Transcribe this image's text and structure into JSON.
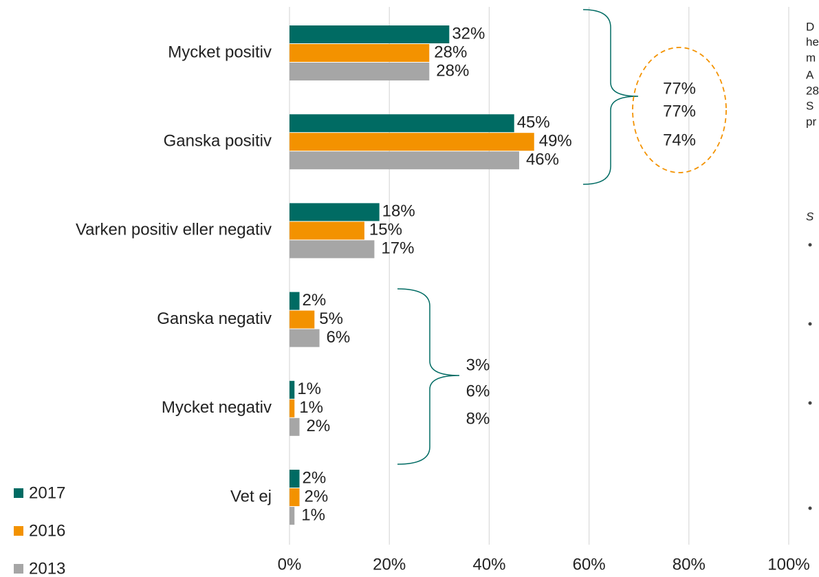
{
  "chart_data": {
    "type": "bar",
    "orientation": "horizontal",
    "categories": [
      "Mycket positiv",
      "Ganska positiv",
      "Varken positiv eller negativ",
      "Ganska negativ",
      "Mycket negativ",
      "Vet ej"
    ],
    "series": [
      {
        "name": "2017",
        "color": "#006b63",
        "values": [
          32,
          45,
          18,
          2,
          1,
          2
        ],
        "value_labels": [
          "32%",
          "45%",
          "18%",
          "2%",
          "1%",
          "2%"
        ]
      },
      {
        "name": "2016",
        "color": "#f39200",
        "values": [
          28,
          49,
          15,
          5,
          1,
          2
        ],
        "value_labels": [
          "28%",
          "49%",
          "15%",
          "5%",
          "1%",
          "2%"
        ]
      },
      {
        "name": "2013",
        "color": "#a6a6a6",
        "values": [
          28,
          46,
          17,
          6,
          2,
          1
        ],
        "value_labels": [
          "28%",
          "46%",
          "17%",
          "6%",
          "2%",
          "1%"
        ]
      }
    ],
    "xlim": [
      0,
      100
    ],
    "xticks": [
      {
        "value": 0,
        "label": "0%"
      },
      {
        "value": 20,
        "label": "20%"
      },
      {
        "value": 40,
        "label": "40%"
      },
      {
        "value": 60,
        "label": "60%"
      },
      {
        "value": 80,
        "label": "80%"
      },
      {
        "value": 100,
        "label": "100%"
      }
    ],
    "grid": true,
    "legend": "bottom-left",
    "annotations": [
      {
        "labels": [
          "77%",
          "77%",
          "74%"
        ]
      },
      {
        "labels": [
          "3%",
          "6%",
          "8%"
        ]
      }
    ]
  },
  "side_text": [
    "D",
    "he",
    "m",
    "A",
    "28",
    "S",
    "pr",
    "S"
  ]
}
